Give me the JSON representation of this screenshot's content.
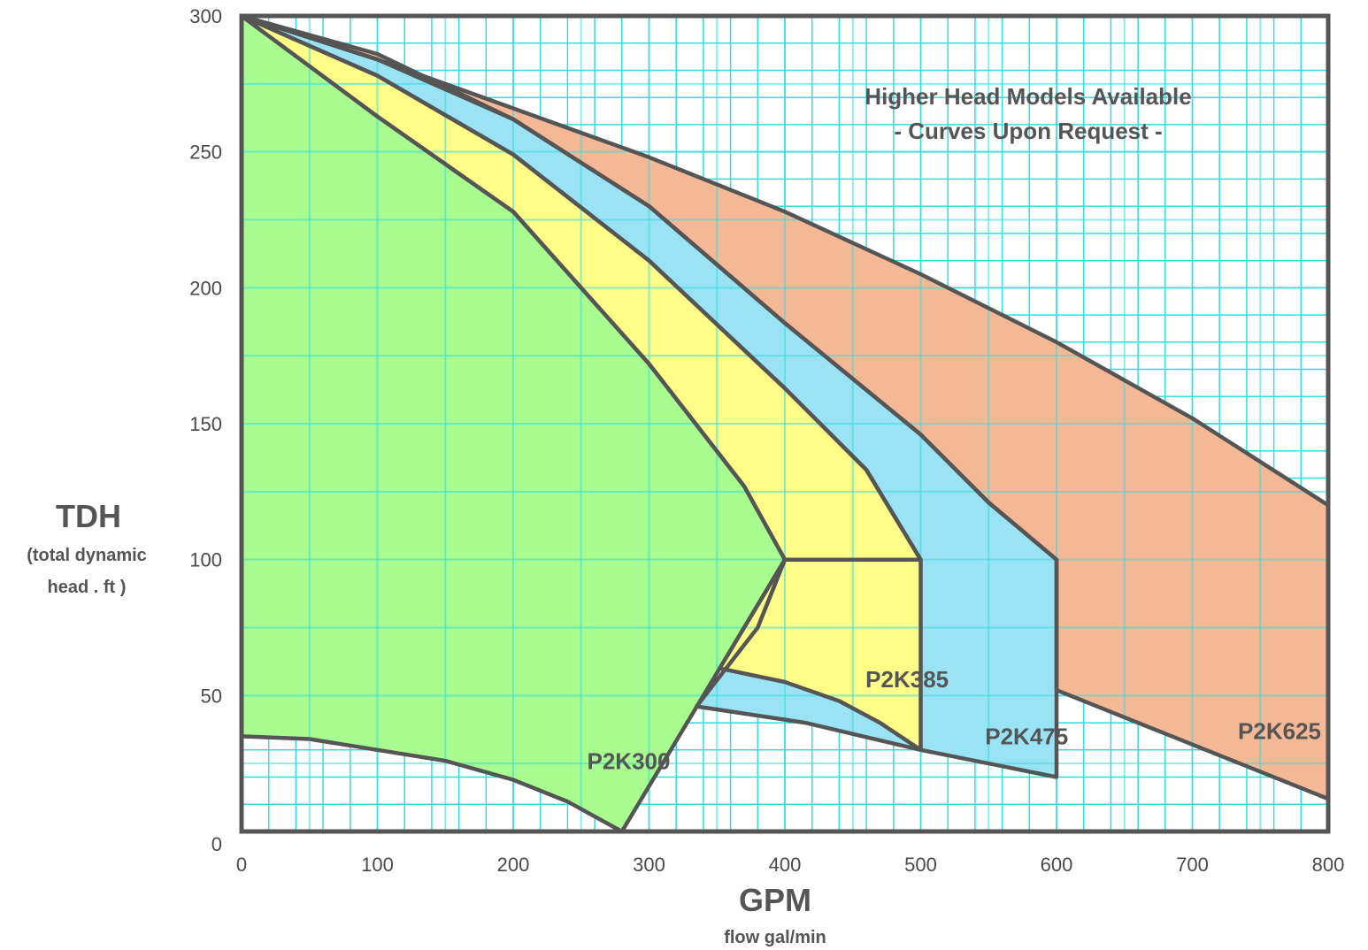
{
  "chart_data": {
    "type": "area",
    "title": "",
    "xlabel": "GPM",
    "xlabel_sub": "flow gal/min",
    "ylabel": "TDH",
    "ylabel_sub": [
      "(total dynamic",
      "head . ft )"
    ],
    "xlim": [
      0,
      800
    ],
    "ylim": [
      0,
      300
    ],
    "x_ticks": [
      0,
      100,
      200,
      300,
      400,
      500,
      600,
      700,
      800
    ],
    "y_ticks": [
      0,
      50,
      100,
      150,
      200,
      250,
      300
    ],
    "grid": true,
    "grid_color": "#33dde0",
    "outline_color": "#555555",
    "annotation": [
      "Higher Head Models Available",
      "- Curves Upon Request -"
    ],
    "series": [
      {
        "name": "P2K625",
        "color": "#f4b896",
        "label_at": [
          800,
          34
        ],
        "upper": [
          [
            0,
            300
          ],
          [
            100,
            284
          ],
          [
            200,
            266
          ],
          [
            300,
            248
          ],
          [
            400,
            228
          ],
          [
            500,
            205
          ],
          [
            600,
            180
          ],
          [
            700,
            152
          ],
          [
            800,
            120
          ]
        ],
        "right": [
          [
            800,
            120
          ],
          [
            800,
            12
          ]
        ],
        "lower": [
          [
            800,
            12
          ],
          [
            700,
            32
          ],
          [
            600,
            52
          ],
          [
            600,
            100
          ]
        ],
        "left": [
          [
            600,
            100
          ],
          [
            550,
            121
          ],
          [
            500,
            146
          ],
          [
            400,
            187
          ],
          [
            300,
            230
          ],
          [
            200,
            262
          ],
          [
            100,
            286
          ],
          [
            0,
            300
          ]
        ]
      },
      {
        "name": "P2K475",
        "color": "#9ae3f4",
        "label_at": [
          578,
          32
        ],
        "upper": [
          [
            0,
            300
          ],
          [
            100,
            284
          ],
          [
            200,
            262
          ],
          [
            300,
            230
          ],
          [
            400,
            187
          ],
          [
            500,
            146
          ],
          [
            550,
            121
          ],
          [
            600,
            100
          ]
        ],
        "right": [
          [
            600,
            100
          ],
          [
            600,
            20
          ]
        ],
        "lower": [
          [
            600,
            20
          ],
          [
            500,
            30
          ],
          [
            415,
            40
          ],
          [
            335,
            46
          ]
        ],
        "left": [
          [
            335,
            46
          ],
          [
            380,
            75
          ],
          [
            400,
            100
          ],
          [
            500,
            100
          ],
          [
            460,
            133
          ],
          [
            400,
            163
          ],
          [
            300,
            210
          ],
          [
            200,
            249
          ],
          [
            100,
            278
          ],
          [
            0,
            300
          ]
        ]
      },
      {
        "name": "P2K385",
        "color": "#fdfd88",
        "label_at": [
          490,
          53
        ],
        "upper": [
          [
            0,
            300
          ],
          [
            100,
            278
          ],
          [
            200,
            249
          ],
          [
            300,
            210
          ],
          [
            400,
            163
          ],
          [
            460,
            133
          ],
          [
            500,
            100
          ]
        ],
        "right": [
          [
            500,
            100
          ],
          [
            500,
            30
          ]
        ],
        "lower": [
          [
            500,
            30
          ],
          [
            470,
            40
          ],
          [
            440,
            48
          ],
          [
            400,
            55
          ],
          [
            352,
            60
          ]
        ],
        "left": [
          [
            352,
            60
          ],
          [
            400,
            100
          ],
          [
            370,
            127
          ],
          [
            300,
            172
          ],
          [
            200,
            228
          ],
          [
            100,
            263
          ],
          [
            0,
            300
          ]
        ]
      },
      {
        "name": "P2K300",
        "color": "#a9fc8f",
        "label_at": [
          285,
          23
        ],
        "upper": [
          [
            0,
            300
          ],
          [
            100,
            263
          ],
          [
            200,
            228
          ],
          [
            300,
            172
          ],
          [
            370,
            127
          ],
          [
            400,
            100
          ]
        ],
        "right": [
          [
            400,
            100
          ],
          [
            280,
            0
          ]
        ],
        "lower": [
          [
            280,
            0
          ],
          [
            240,
            11
          ],
          [
            200,
            19
          ],
          [
            150,
            26
          ],
          [
            100,
            30
          ],
          [
            50,
            34
          ],
          [
            0,
            35
          ]
        ],
        "left": [
          [
            0,
            35
          ],
          [
            0,
            300
          ]
        ]
      }
    ]
  }
}
